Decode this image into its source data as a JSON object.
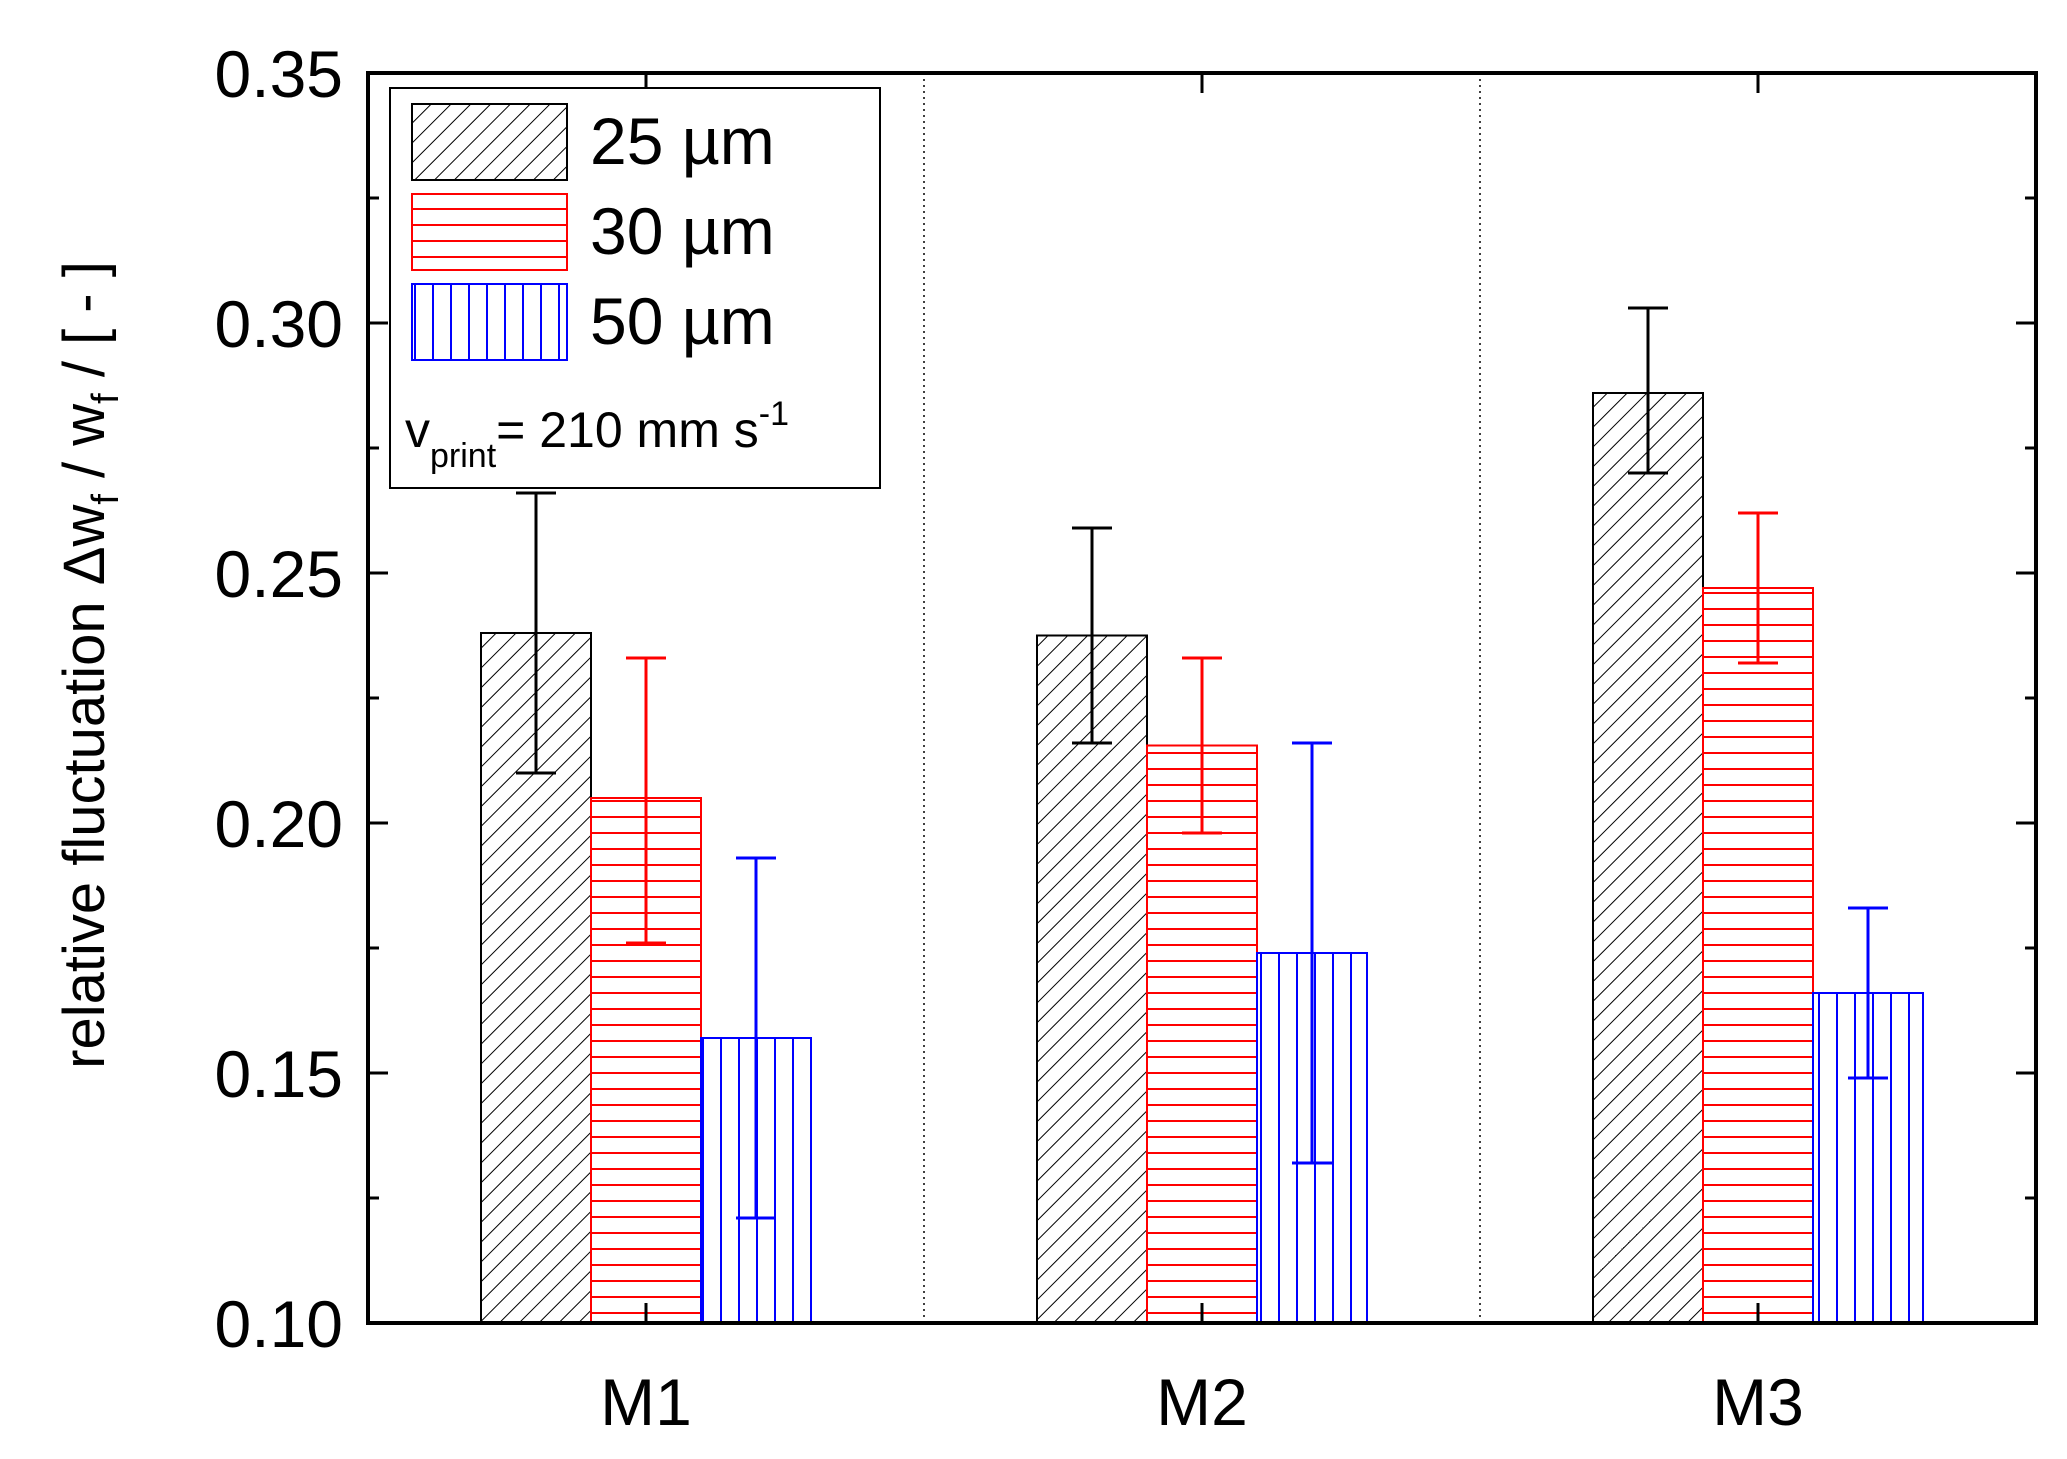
{
  "chart_data": {
    "type": "bar",
    "title": "",
    "xlabel": "",
    "ylabel_parts": {
      "main": "relative fluctuation Δw",
      "sub1": "f",
      "mid": " / w",
      "sub2": "f",
      "end": " / [ - ]"
    },
    "ylim": [
      0.1,
      0.35
    ],
    "yticks": [
      "0.10",
      "0.15",
      "0.20",
      "0.25",
      "0.30",
      "0.35"
    ],
    "ytick_values": [
      0.1,
      0.15,
      0.2,
      0.25,
      0.3,
      0.35
    ],
    "categories": [
      "M1",
      "M2",
      "M3"
    ],
    "series": [
      {
        "name": "25 µm",
        "color": "#000000",
        "pattern": "diagonal",
        "values": [
          0.238,
          0.2375,
          0.286
        ],
        "errors_low": [
          0.21,
          0.216,
          0.27
        ],
        "errors_high": [
          0.266,
          0.259,
          0.303
        ]
      },
      {
        "name": "30 µm",
        "color": "#ff0000",
        "pattern": "horizontal",
        "values": [
          0.205,
          0.2155,
          0.247
        ],
        "errors_low": [
          0.176,
          0.198,
          0.232
        ],
        "errors_high": [
          0.233,
          0.233,
          0.262
        ]
      },
      {
        "name": "50 µm",
        "color": "#0000ff",
        "pattern": "vertical",
        "values": [
          0.157,
          0.174,
          0.166
        ],
        "errors_low": [
          0.121,
          0.132,
          0.149
        ],
        "errors_high": [
          0.193,
          0.216,
          0.183
        ]
      }
    ],
    "legend": {
      "position": "top-left",
      "entries": [
        "25 µm",
        "30 µm",
        "50 µm"
      ],
      "note": {
        "v": "v",
        "sub": "print",
        "mid": "= 210 mm s",
        "sup": "-1"
      }
    },
    "grid": false,
    "category_separators": "dotted"
  }
}
